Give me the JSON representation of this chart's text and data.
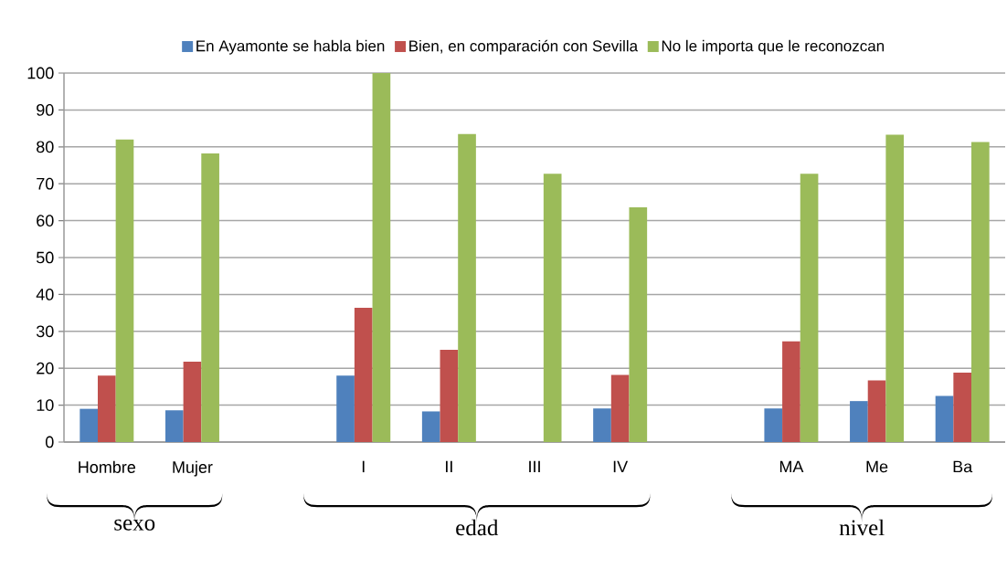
{
  "chart_data": {
    "type": "bar",
    "categories": [
      "Hombre",
      "Mujer",
      null,
      "I",
      "II",
      "III",
      "IV",
      null,
      "MA",
      "Me",
      "Ba"
    ],
    "series": [
      {
        "name": "En Ayamonte se habla bien",
        "color": "#4f81bd",
        "values": [
          9,
          8.6,
          null,
          18,
          8.3,
          0,
          9.1,
          null,
          9.1,
          11.1,
          12.5
        ]
      },
      {
        "name": "Bien, en comparación con Sevilla",
        "color": "#c0504d",
        "values": [
          18,
          21.8,
          null,
          36.4,
          25,
          0,
          18.2,
          null,
          27.3,
          16.7,
          18.8
        ]
      },
      {
        "name": "No le importa que le reconozcan",
        "color": "#9bbb59",
        "values": [
          82,
          78.2,
          null,
          100,
          83.5,
          72.7,
          63.6,
          null,
          72.7,
          83.3,
          81.3
        ]
      }
    ],
    "ylim": [
      0,
      100
    ],
    "yticks": [
      0,
      10,
      20,
      30,
      40,
      50,
      60,
      70,
      80,
      90,
      100
    ],
    "grid": "y",
    "legend": "top",
    "annotations": [
      "sexo",
      "edad",
      "nivel"
    ]
  }
}
